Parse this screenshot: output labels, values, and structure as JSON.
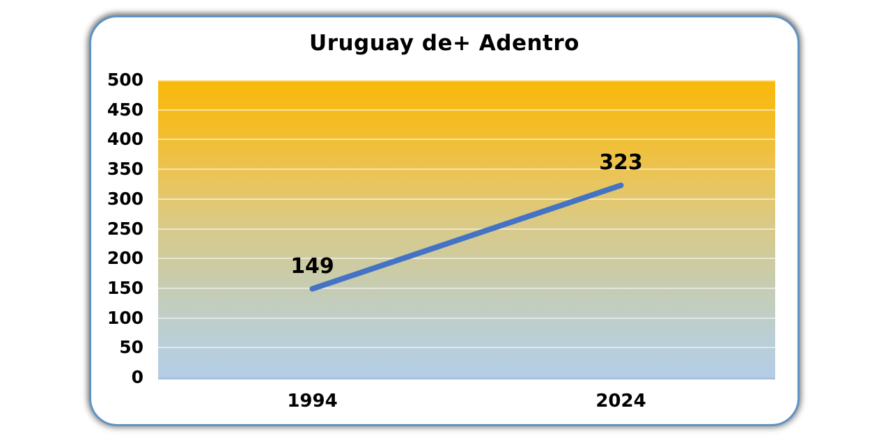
{
  "card": {
    "background": "#FFFFFF",
    "border_color": "#5F93C3"
  },
  "chart_data": {
    "type": "line",
    "title": "Uruguay de+ Adentro",
    "categories": [
      "1994",
      "2024"
    ],
    "series": [
      {
        "name": "Uruguay de+ Adentro",
        "values": [
          149,
          323
        ]
      }
    ],
    "data_labels": [
      "149",
      "323"
    ],
    "yticks": [
      0,
      50,
      100,
      150,
      200,
      250,
      300,
      350,
      400,
      450,
      500
    ],
    "ylim": [
      0,
      500
    ],
    "xlabel": "",
    "ylabel": "",
    "grid": true,
    "legend_position": "none",
    "line_color": "#4472C4",
    "line_width": 8,
    "gridline_color": "rgba(255,255,255,0.55)",
    "plot_bg_gradient_top": "#F8B90B",
    "plot_bg_gradient_mid": "#D5CB94",
    "plot_bg_gradient_bottom": "#B5CEE6"
  }
}
